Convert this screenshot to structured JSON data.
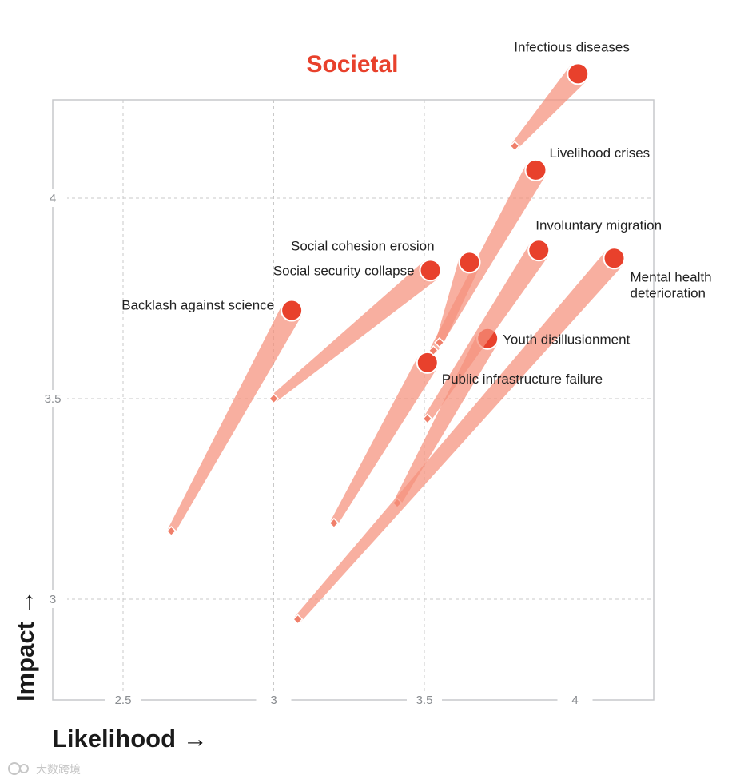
{
  "chart_data": {
    "type": "scatter",
    "title": "Societal",
    "xlabel": "Likelihood →",
    "ylabel": "Impact →",
    "xlim": [
      2.2,
      4.27
    ],
    "ylim": [
      2.75,
      4.25
    ],
    "xticks": [
      "2.5",
      "3",
      "3.5",
      "4"
    ],
    "xtick_values": [
      2.5,
      3.0,
      3.5,
      4.0
    ],
    "yticks": [
      "3",
      "3.5",
      "4"
    ],
    "ytick_values": [
      3.0,
      3.5,
      4.0
    ],
    "grid": true,
    "series_description": "Each risk moves from a start point (diamond) to an end point (circle)",
    "points": [
      {
        "name": "Infectious diseases",
        "x0": 3.8,
        "y0": 4.13,
        "x1": 4.01,
        "y1": 4.31
      },
      {
        "name": "Livelihood crises",
        "x0": 3.53,
        "y0": 3.62,
        "x1": 3.87,
        "y1": 4.07
      },
      {
        "name": "Involuntary migration",
        "x0": 3.51,
        "y0": 3.45,
        "x1": 3.88,
        "y1": 3.87
      },
      {
        "name": "Mental health deterioration",
        "x0": 3.08,
        "y0": 2.95,
        "x1": 4.13,
        "y1": 3.85
      },
      {
        "name": "Social cohesion erosion",
        "x0": 3.55,
        "y0": 3.64,
        "x1": 3.65,
        "y1": 3.84
      },
      {
        "name": "Social security collapse",
        "x0": 3.0,
        "y0": 3.5,
        "x1": 3.52,
        "y1": 3.82
      },
      {
        "name": "Backlash against science",
        "x0": 2.66,
        "y0": 3.17,
        "x1": 3.06,
        "y1": 3.72
      },
      {
        "name": "Youth disillusionment",
        "x0": 3.41,
        "y0": 3.24,
        "x1": 3.71,
        "y1": 3.65
      },
      {
        "name": "Public infrastructure failure",
        "x0": 3.2,
        "y0": 3.19,
        "x1": 3.51,
        "y1": 3.59
      }
    ]
  },
  "watermark": "大数跨境",
  "colors": {
    "accent": "#e8412c",
    "band": "#f5907c",
    "diamond": "#f07f6a",
    "grid": "#c9c9c9",
    "frame": "#c7c9cc"
  }
}
